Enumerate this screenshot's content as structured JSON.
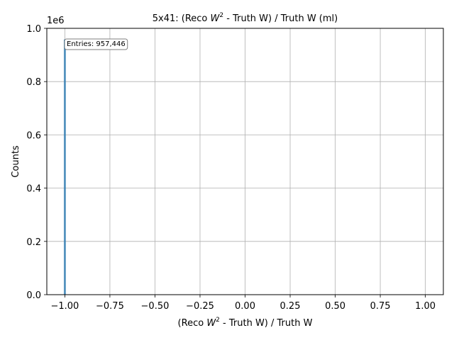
{
  "chart_data": {
    "type": "histogram",
    "title_parts": [
      "5x41: (Reco ",
      "W",
      "2",
      " - Truth W) / Truth W (ml)"
    ],
    "xlabel_parts": [
      "(Reco ",
      "W",
      "2",
      " - Truth W) / Truth W"
    ],
    "ylabel": "Counts",
    "y_offset_text": "1e6",
    "xlim": [
      -1.1,
      1.1
    ],
    "ylim": [
      0,
      1.0
    ],
    "x_ticks": [
      -1.0,
      -0.75,
      -0.5,
      -0.25,
      0.0,
      0.25,
      0.5,
      0.75,
      1.0
    ],
    "x_tick_labels": [
      "−1.00",
      "−0.75",
      "−0.50",
      "−0.25",
      "0.00",
      "0.25",
      "0.50",
      "0.75",
      "1.00"
    ],
    "y_ticks": [
      0.0,
      0.2,
      0.4,
      0.6,
      0.8,
      1.0
    ],
    "y_tick_labels": [
      "0.0",
      "0.2",
      "0.4",
      "0.6",
      "0.8",
      "1.0"
    ],
    "grid": true,
    "bins": [
      {
        "x": -1.0,
        "count": 0.9574
      }
    ],
    "annotation": "Entries: 957,446",
    "color": "#1f77b4"
  }
}
